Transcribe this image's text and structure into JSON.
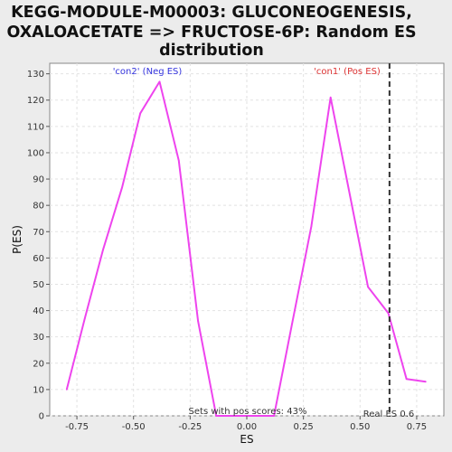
{
  "chart_data": {
    "type": "line",
    "title_lines": [
      "KEGG-MODULE-M00003: GLUCONEOGENESIS,",
      "OXALOACETATE => FRUCTOSE-6P: Random ES",
      "distribution"
    ],
    "xlabel": "ES",
    "ylabel": "P(ES)",
    "xlim": [
      -0.87,
      0.87
    ],
    "ylim": [
      0,
      134
    ],
    "x_ticks": [
      -0.75,
      -0.5,
      -0.25,
      0.0,
      0.25,
      0.5,
      0.75
    ],
    "x_tick_labels": [
      "-0.75",
      "-0.50",
      "-0.25",
      "0.00",
      "0.25",
      "0.50",
      "0.75"
    ],
    "y_ticks": [
      0,
      10,
      20,
      30,
      40,
      50,
      60,
      70,
      80,
      90,
      100,
      110,
      120,
      130
    ],
    "y_tick_labels": [
      "0",
      "10",
      "20",
      "30",
      "40",
      "50",
      "60",
      "70",
      "80",
      "90",
      "100",
      "110",
      "120",
      "130"
    ],
    "grid": true,
    "series": [
      {
        "color": "#ee44ee",
        "x": [
          -0.795,
          -0.715,
          -0.635,
          -0.55,
          -0.47,
          -0.385,
          -0.3,
          -0.215,
          -0.135,
          -0.05,
          0.03,
          0.12,
          0.2,
          0.285,
          0.37,
          0.455,
          0.535,
          0.625,
          0.705,
          0.79
        ],
        "y": [
          10,
          37,
          63,
          87,
          115,
          127,
          97,
          36,
          0,
          0,
          0,
          0,
          35,
          72,
          121,
          84,
          49,
          39,
          14,
          13
        ]
      }
    ],
    "real_es": {
      "x": 0.63,
      "label": "Real ES 0.6",
      "color": "#333333"
    },
    "annotations": {
      "neg": {
        "text": "'con2' (Neg ES)",
        "color": "#3333dd"
      },
      "pos": {
        "text": "'con1' (Pos ES)",
        "color": "#dd3333"
      },
      "bottom": {
        "text": "Sets with pos scores: 43%",
        "color": "#333333"
      }
    }
  }
}
